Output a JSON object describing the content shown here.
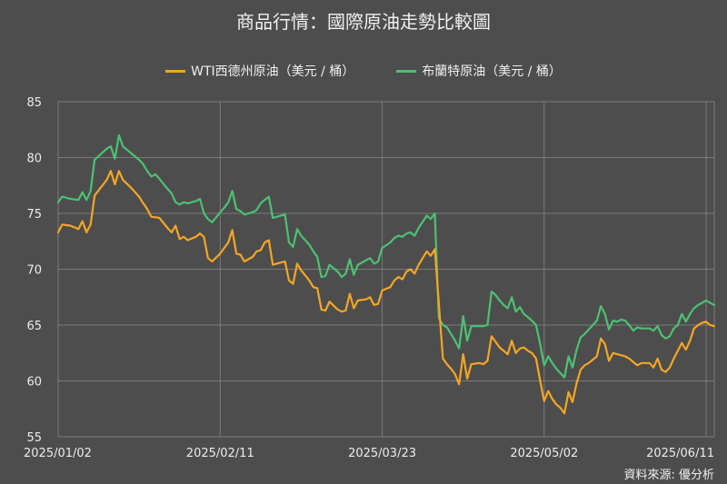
{
  "title": "商品行情：國際原油走勢比較圖",
  "source": "資料來源: 優分析",
  "colors": {
    "background": "#4d4d4d",
    "grid": "#7a7a7a",
    "wti": "#f5a623",
    "brent": "#4cc173"
  },
  "chart_data": {
    "type": "line",
    "title": "商品行情：國際原油走勢比較圖",
    "xlabel": "",
    "ylabel": "",
    "ylim": [
      55,
      85
    ],
    "yticks": [
      "55",
      "60",
      "65",
      "70",
      "75",
      "80",
      "85"
    ],
    "xticks": [
      "2025/01/02",
      "2025/02/11",
      "2025/03/23",
      "2025/05/02",
      "2025/06/11"
    ],
    "grid": true,
    "legend_position": "top-center",
    "series": [
      {
        "name": "WTI西德州原油（美元 / 桶）",
        "color": "#f5a623",
        "points": [
          [
            0,
            73.3
          ],
          [
            1,
            74.0
          ],
          [
            3,
            73.9
          ],
          [
            5,
            73.6
          ],
          [
            6,
            74.3
          ],
          [
            7,
            73.3
          ],
          [
            8,
            74.0
          ],
          [
            9,
            76.6
          ],
          [
            12,
            78.0
          ],
          [
            13,
            78.8
          ],
          [
            14,
            77.6
          ],
          [
            15,
            78.8
          ],
          [
            16,
            78.0
          ],
          [
            18,
            77.3
          ],
          [
            20,
            76.5
          ],
          [
            21,
            75.9
          ],
          [
            22,
            75.4
          ],
          [
            23,
            74.7
          ],
          [
            25,
            74.6
          ],
          [
            27,
            73.7
          ],
          [
            28,
            73.3
          ],
          [
            29,
            73.9
          ],
          [
            30,
            72.7
          ],
          [
            31,
            72.9
          ],
          [
            32,
            72.6
          ],
          [
            34,
            72.9
          ],
          [
            35,
            73.2
          ],
          [
            36,
            72.9
          ],
          [
            37,
            71.0
          ],
          [
            38,
            70.7
          ],
          [
            40,
            71.4
          ],
          [
            41,
            71.9
          ],
          [
            42,
            72.4
          ],
          [
            43,
            73.5
          ],
          [
            44,
            71.4
          ],
          [
            45,
            71.3
          ],
          [
            46,
            70.7
          ],
          [
            48,
            71.1
          ],
          [
            49,
            71.6
          ],
          [
            50,
            71.7
          ],
          [
            51,
            72.4
          ],
          [
            52,
            72.6
          ],
          [
            53,
            70.4
          ],
          [
            55,
            70.6
          ],
          [
            56,
            70.7
          ],
          [
            57,
            69.0
          ],
          [
            58,
            68.7
          ],
          [
            59,
            70.5
          ],
          [
            60,
            69.9
          ],
          [
            62,
            69.0
          ],
          [
            63,
            68.4
          ],
          [
            64,
            68.3
          ],
          [
            65,
            66.4
          ],
          [
            66,
            66.3
          ],
          [
            67,
            67.1
          ],
          [
            69,
            66.4
          ],
          [
            70,
            66.2
          ],
          [
            71,
            66.3
          ],
          [
            72,
            67.8
          ],
          [
            73,
            66.5
          ],
          [
            74,
            67.2
          ],
          [
            76,
            67.3
          ],
          [
            77,
            67.5
          ],
          [
            78,
            66.8
          ],
          [
            79,
            66.9
          ],
          [
            80,
            68.1
          ],
          [
            82,
            68.4
          ],
          [
            83,
            69.0
          ],
          [
            84,
            69.3
          ],
          [
            85,
            69.1
          ],
          [
            86,
            69.8
          ],
          [
            87,
            70.0
          ],
          [
            88,
            69.6
          ],
          [
            89,
            70.4
          ],
          [
            91,
            71.6
          ],
          [
            92,
            71.2
          ],
          [
            93,
            71.8
          ],
          [
            95,
            62.0
          ],
          [
            96,
            61.5
          ],
          [
            97,
            61.1
          ],
          [
            98,
            60.6
          ],
          [
            99,
            59.7
          ],
          [
            100,
            62.4
          ],
          [
            101,
            60.2
          ],
          [
            102,
            61.5
          ],
          [
            104,
            61.6
          ],
          [
            105,
            61.5
          ],
          [
            106,
            61.8
          ],
          [
            107,
            64.0
          ],
          [
            108,
            63.5
          ],
          [
            109,
            63.0
          ],
          [
            110,
            62.7
          ],
          [
            111,
            62.4
          ],
          [
            112,
            63.6
          ],
          [
            113,
            62.5
          ],
          [
            114,
            62.9
          ],
          [
            115,
            63.0
          ],
          [
            116,
            62.7
          ],
          [
            117,
            62.5
          ],
          [
            118,
            62.0
          ],
          [
            119,
            60.0
          ],
          [
            120,
            58.2
          ],
          [
            121,
            59.1
          ],
          [
            122,
            58.4
          ],
          [
            123,
            57.9
          ],
          [
            124,
            57.6
          ],
          [
            125,
            57.1
          ],
          [
            126,
            59.0
          ],
          [
            127,
            58.1
          ],
          [
            128,
            59.8
          ],
          [
            129,
            61.0
          ],
          [
            130,
            61.4
          ],
          [
            131,
            61.6
          ],
          [
            132,
            61.9
          ],
          [
            133,
            62.2
          ],
          [
            134,
            63.8
          ],
          [
            135,
            63.3
          ],
          [
            136,
            61.8
          ],
          [
            137,
            62.5
          ],
          [
            138,
            62.4
          ],
          [
            139,
            62.3
          ],
          [
            140,
            62.2
          ],
          [
            141,
            62.0
          ],
          [
            142,
            61.7
          ],
          [
            143,
            61.4
          ],
          [
            144,
            61.6
          ],
          [
            146,
            61.6
          ],
          [
            147,
            61.2
          ],
          [
            148,
            62.0
          ],
          [
            149,
            61.0
          ],
          [
            150,
            60.8
          ],
          [
            151,
            61.2
          ],
          [
            152,
            62.0
          ],
          [
            153,
            62.7
          ],
          [
            154,
            63.4
          ],
          [
            155,
            62.8
          ],
          [
            156,
            63.6
          ],
          [
            157,
            64.7
          ],
          [
            158,
            65.0
          ],
          [
            159,
            65.2
          ],
          [
            160,
            65.3
          ],
          [
            161,
            65.0
          ],
          [
            162,
            64.9
          ]
        ]
      },
      {
        "name": "布蘭特原油（美元 / 桶）",
        "color": "#4cc173",
        "points": [
          [
            0,
            76.0
          ],
          [
            1,
            76.5
          ],
          [
            3,
            76.3
          ],
          [
            5,
            76.2
          ],
          [
            6,
            76.9
          ],
          [
            7,
            76.2
          ],
          [
            8,
            77.0
          ],
          [
            9,
            79.8
          ],
          [
            12,
            80.8
          ],
          [
            13,
            81.0
          ],
          [
            14,
            79.9
          ],
          [
            15,
            82.0
          ],
          [
            16,
            81.0
          ],
          [
            18,
            80.4
          ],
          [
            20,
            79.8
          ],
          [
            21,
            79.4
          ],
          [
            22,
            78.8
          ],
          [
            23,
            78.3
          ],
          [
            24,
            78.5
          ],
          [
            25,
            78.1
          ],
          [
            27,
            77.2
          ],
          [
            28,
            76.8
          ],
          [
            29,
            76.0
          ],
          [
            30,
            75.8
          ],
          [
            31,
            76.0
          ],
          [
            32,
            75.9
          ],
          [
            34,
            76.1
          ],
          [
            35,
            76.3
          ],
          [
            36,
            75.0
          ],
          [
            37,
            74.5
          ],
          [
            38,
            74.2
          ],
          [
            40,
            75.1
          ],
          [
            41,
            75.5
          ],
          [
            42,
            76.0
          ],
          [
            43,
            77.0
          ],
          [
            44,
            75.4
          ],
          [
            45,
            75.2
          ],
          [
            46,
            74.9
          ],
          [
            48,
            75.1
          ],
          [
            49,
            75.3
          ],
          [
            50,
            75.9
          ],
          [
            51,
            76.2
          ],
          [
            52,
            76.5
          ],
          [
            53,
            74.6
          ],
          [
            55,
            74.8
          ],
          [
            56,
            74.9
          ],
          [
            57,
            72.4
          ],
          [
            58,
            72.0
          ],
          [
            59,
            73.6
          ],
          [
            60,
            73.0
          ],
          [
            62,
            72.2
          ],
          [
            63,
            71.6
          ],
          [
            64,
            71.1
          ],
          [
            65,
            69.3
          ],
          [
            66,
            69.4
          ],
          [
            67,
            70.4
          ],
          [
            69,
            69.8
          ],
          [
            70,
            69.3
          ],
          [
            71,
            69.6
          ],
          [
            72,
            70.9
          ],
          [
            73,
            69.5
          ],
          [
            74,
            70.4
          ],
          [
            76,
            70.8
          ],
          [
            77,
            71.0
          ],
          [
            78,
            70.5
          ],
          [
            79,
            70.7
          ],
          [
            80,
            71.9
          ],
          [
            82,
            72.4
          ],
          [
            83,
            72.8
          ],
          [
            84,
            73.0
          ],
          [
            85,
            72.9
          ],
          [
            86,
            73.2
          ],
          [
            87,
            73.3
          ],
          [
            88,
            73.0
          ],
          [
            89,
            73.7
          ],
          [
            91,
            74.8
          ],
          [
            92,
            74.5
          ],
          [
            93,
            75.0
          ],
          [
            94,
            65.6
          ],
          [
            95,
            65.0
          ],
          [
            96,
            64.8
          ],
          [
            97,
            64.2
          ],
          [
            98,
            63.6
          ],
          [
            99,
            62.9
          ],
          [
            100,
            65.8
          ],
          [
            101,
            63.6
          ],
          [
            102,
            64.9
          ],
          [
            104,
            64.9
          ],
          [
            105,
            64.9
          ],
          [
            106,
            65.0
          ],
          [
            107,
            68.0
          ],
          [
            108,
            67.7
          ],
          [
            109,
            67.2
          ],
          [
            110,
            66.8
          ],
          [
            111,
            66.5
          ],
          [
            112,
            67.5
          ],
          [
            113,
            66.2
          ],
          [
            114,
            66.6
          ],
          [
            115,
            66.0
          ],
          [
            116,
            65.7
          ],
          [
            117,
            65.4
          ],
          [
            118,
            65.0
          ],
          [
            119,
            63.3
          ],
          [
            120,
            61.4
          ],
          [
            121,
            62.2
          ],
          [
            122,
            61.6
          ],
          [
            123,
            61.1
          ],
          [
            124,
            60.7
          ],
          [
            125,
            60.3
          ],
          [
            126,
            62.2
          ],
          [
            127,
            61.2
          ],
          [
            128,
            62.8
          ],
          [
            129,
            63.9
          ],
          [
            130,
            64.2
          ],
          [
            131,
            64.6
          ],
          [
            132,
            65.0
          ],
          [
            133,
            65.4
          ],
          [
            134,
            66.7
          ],
          [
            135,
            66.0
          ],
          [
            136,
            64.6
          ],
          [
            137,
            65.4
          ],
          [
            138,
            65.3
          ],
          [
            139,
            65.5
          ],
          [
            140,
            65.4
          ],
          [
            141,
            65.0
          ],
          [
            142,
            64.5
          ],
          [
            143,
            64.8
          ],
          [
            144,
            64.7
          ],
          [
            146,
            64.7
          ],
          [
            147,
            64.5
          ],
          [
            148,
            64.9
          ],
          [
            149,
            64.1
          ],
          [
            150,
            63.8
          ],
          [
            151,
            64.0
          ],
          [
            152,
            64.7
          ],
          [
            153,
            65.0
          ],
          [
            154,
            66.0
          ],
          [
            155,
            65.3
          ],
          [
            156,
            66.0
          ],
          [
            157,
            66.5
          ],
          [
            158,
            66.8
          ],
          [
            159,
            67.0
          ],
          [
            160,
            67.2
          ],
          [
            161,
            67.0
          ],
          [
            162,
            66.8
          ]
        ]
      }
    ]
  }
}
